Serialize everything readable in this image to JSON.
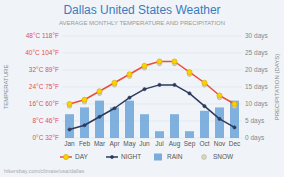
{
  "chart_data": {
    "type": "bar",
    "title": "Dallas United States Weather",
    "subtitle": "AVERAGE MONTHLY TEMPERATURE AND PRECIPITATION",
    "ylabel": "TEMPERATURE",
    "y2label": "PRECIPITATION (DAYS)",
    "annotations": [
      "hikersbay.com/climate/usa/dallas"
    ],
    "categories": [
      "Jan",
      "Feb",
      "Mar",
      "Apr",
      "May",
      "Jun",
      "Jul",
      "Aug",
      "Sep",
      "Oct",
      "Nov",
      "Dec"
    ],
    "series": [
      {
        "name": "DAY",
        "type": "line",
        "color": "#e8503a",
        "marker": "circle",
        "values": [
          16,
          18,
          22,
          26,
          30,
          34,
          36,
          36,
          31,
          26,
          20,
          16
        ]
      },
      {
        "name": "NIGHT",
        "type": "line",
        "color": "#2e3a5c",
        "marker": "circle",
        "values": [
          4,
          6,
          10,
          14,
          19,
          23,
          25,
          25,
          21,
          15,
          9,
          5
        ]
      },
      {
        "name": "RAIN",
        "type": "bar",
        "axis": "y2",
        "color": "#5b9bd5",
        "values": [
          7,
          9,
          11,
          9,
          11,
          7,
          2,
          7,
          2,
          8,
          9,
          11
        ]
      },
      {
        "name": "SNOW",
        "type": "scatter",
        "color": "#d8d8c0",
        "marker": "circle",
        "values": [
          15,
          17,
          21,
          25,
          29,
          33,
          35,
          35,
          30,
          25,
          19,
          15
        ]
      }
    ],
    "ylim": [
      0,
      48
    ],
    "yticks": [
      {
        "value": 0,
        "label": "0°C 32°F"
      },
      {
        "value": 8,
        "label": "8°C 46°F"
      },
      {
        "value": 16,
        "label": "16°C 60°F"
      },
      {
        "value": 24,
        "label": "24°C 75°F"
      },
      {
        "value": 32,
        "label": "32°C 89°F"
      },
      {
        "value": 40,
        "label": "40°C 104°F"
      },
      {
        "value": 48,
        "label": "48°C 118°F"
      }
    ],
    "y2lim": [
      0,
      30
    ],
    "y2ticks": [
      {
        "value": 0,
        "label": "0 days"
      },
      {
        "value": 5,
        "label": "5 days"
      },
      {
        "value": 10,
        "label": "10 days"
      },
      {
        "value": 15,
        "label": "15 days"
      },
      {
        "value": 20,
        "label": "20 days"
      },
      {
        "value": 25,
        "label": "25 days"
      },
      {
        "value": 30,
        "label": "30 days"
      }
    ],
    "grid": true,
    "legend": "bottom"
  }
}
